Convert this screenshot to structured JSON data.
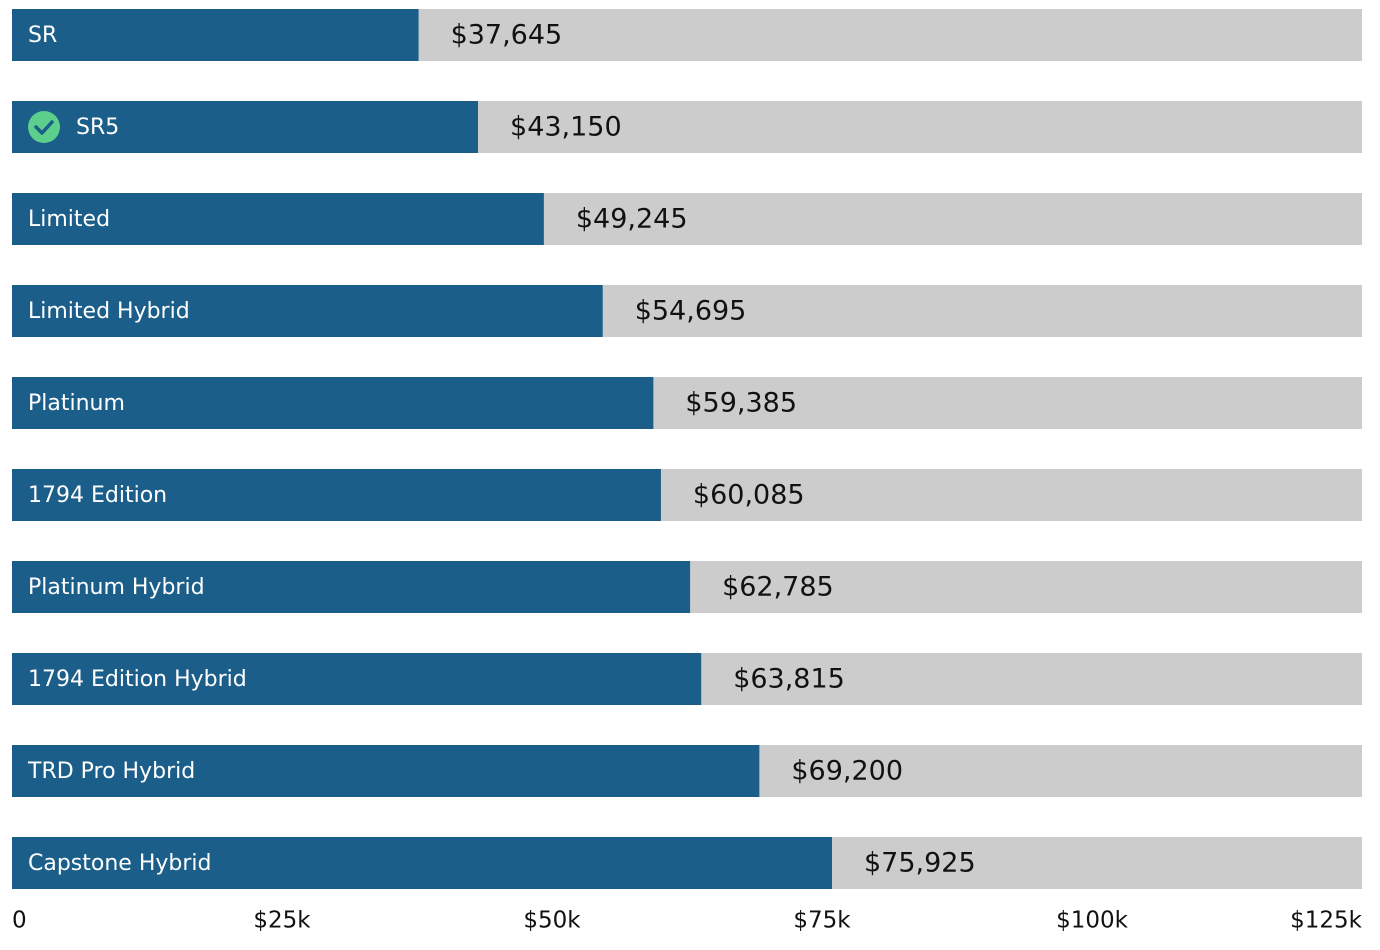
{
  "chart_data": {
    "type": "hbar",
    "categories": [
      "SR",
      "SR5",
      "Limited",
      "Limited Hybrid",
      "Platinum",
      "1794 Edition",
      "Platinum Hybrid",
      "1794 Edition Hybrid",
      "TRD Pro Hybrid",
      "Capstone Hybrid"
    ],
    "values": [
      37645,
      43150,
      49245,
      54695,
      59385,
      60085,
      62785,
      63815,
      69200,
      75925
    ],
    "value_labels": [
      "$37,645",
      "$43,150",
      "$49,245",
      "$54,695",
      "$59,385",
      "$60,085",
      "$62,785",
      "$63,815",
      "$69,200",
      "$75,925"
    ],
    "color": "#1b5e8a",
    "track_color": "#cccccc",
    "selected": 1,
    "xlim": [
      0,
      125000
    ],
    "xticks": [
      0,
      {
        "value": 25000,
        "label": "$25k"
      },
      {
        "value": 50000,
        "label": "$50k"
      },
      {
        "value": 75000,
        "label": "$75k"
      },
      {
        "value": 100000,
        "label": "$100k"
      },
      {
        "value": 125000,
        "label": "$125k"
      }
    ]
  }
}
